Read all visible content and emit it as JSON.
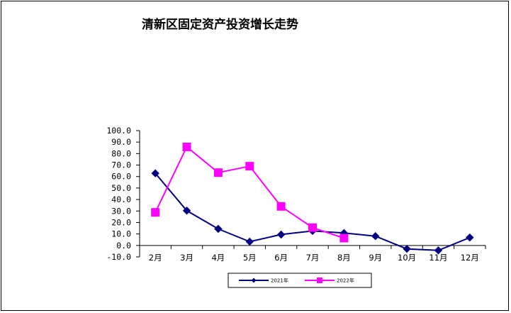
{
  "chart_data": {
    "type": "line",
    "title": "清新区固定资产投资增长走势",
    "xlabel": "",
    "ylabel": "",
    "categories": [
      "2月",
      "3月",
      "4月",
      "5月",
      "6月",
      "7月",
      "8月",
      "9月",
      "10月",
      "11月",
      "12月"
    ],
    "ylim": [
      -10,
      100
    ],
    "yticks": [
      -10,
      0,
      10,
      20,
      30,
      40,
      50,
      60,
      70,
      80,
      90,
      100
    ],
    "ytick_labels": [
      "-10.0",
      "0.0",
      "10.0",
      "20.0",
      "30.0",
      "40.0",
      "50.0",
      "60.0",
      "70.0",
      "80.0",
      "90.0",
      "100.0"
    ],
    "grid": false,
    "legend_position": "bottom",
    "series": [
      {
        "name": "2021年",
        "color": "#000080",
        "marker": "diamond",
        "values": [
          62.8,
          30.3,
          14.4,
          3.3,
          9.5,
          12.6,
          10.8,
          8.1,
          -3.0,
          -4.3,
          6.9
        ]
      },
      {
        "name": "2022年",
        "color": "#FF00FF",
        "marker": "square",
        "values": [
          28.8,
          85.8,
          63.4,
          69.0,
          34.0,
          15.5,
          6.4,
          null,
          null,
          null,
          null
        ]
      }
    ]
  }
}
